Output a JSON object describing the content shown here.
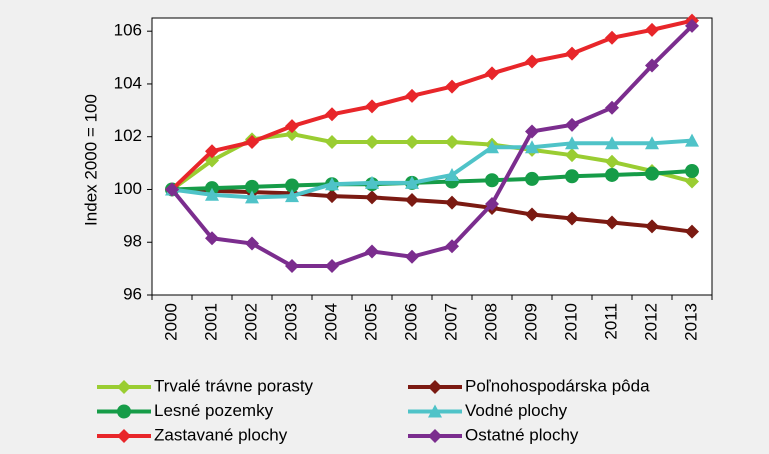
{
  "chart_data": {
    "type": "line",
    "y_label": "Index 2000 = 100",
    "categories": [
      "2000",
      "2001",
      "2002",
      "2003",
      "2004",
      "2005",
      "2006",
      "2007",
      "2008",
      "2009",
      "2010",
      "2011",
      "2012",
      "2013"
    ],
    "ylim": [
      96,
      106.5
    ],
    "yticks": [
      96,
      98,
      100,
      102,
      104,
      106
    ],
    "series": [
      {
        "name": "Trvalé trávne porasty",
        "color": "#9acd32",
        "marker": "diamond",
        "values": [
          100,
          101.1,
          101.9,
          102.1,
          101.8,
          101.8,
          101.8,
          101.8,
          101.7,
          101.5,
          101.3,
          101.05,
          100.7,
          100.3
        ]
      },
      {
        "name": "Poľnohospodárska pôda",
        "color": "#7b1a12",
        "marker": "diamond",
        "values": [
          100,
          99.95,
          99.9,
          99.85,
          99.75,
          99.7,
          99.6,
          99.5,
          99.3,
          99.05,
          98.9,
          98.75,
          98.6,
          98.4
        ]
      },
      {
        "name": "Lesné pozemky",
        "color": "#169c48",
        "marker": "circle",
        "values": [
          100,
          100.05,
          100.1,
          100.15,
          100.2,
          100.2,
          100.25,
          100.3,
          100.35,
          100.4,
          100.5,
          100.55,
          100.6,
          100.7
        ]
      },
      {
        "name": "Vodné plochy",
        "color": "#4fc3c8",
        "marker": "triangle",
        "values": [
          100,
          99.8,
          99.7,
          99.75,
          100.2,
          100.25,
          100.25,
          100.55,
          101.6,
          101.6,
          101.75,
          101.75,
          101.75,
          101.85
        ]
      },
      {
        "name": "Zastavané plochy",
        "color": "#e8262a",
        "marker": "diamond",
        "values": [
          100,
          101.45,
          101.8,
          102.4,
          102.85,
          103.15,
          103.55,
          103.9,
          104.4,
          104.85,
          105.15,
          105.75,
          106.05,
          106.4
        ]
      },
      {
        "name": "Ostatné plochy",
        "color": "#7b2d8e",
        "marker": "diamond",
        "values": [
          100,
          98.15,
          97.95,
          97.1,
          97.1,
          97.65,
          97.45,
          97.85,
          99.45,
          102.2,
          102.45,
          103.1,
          104.7,
          106.2
        ]
      }
    ]
  }
}
